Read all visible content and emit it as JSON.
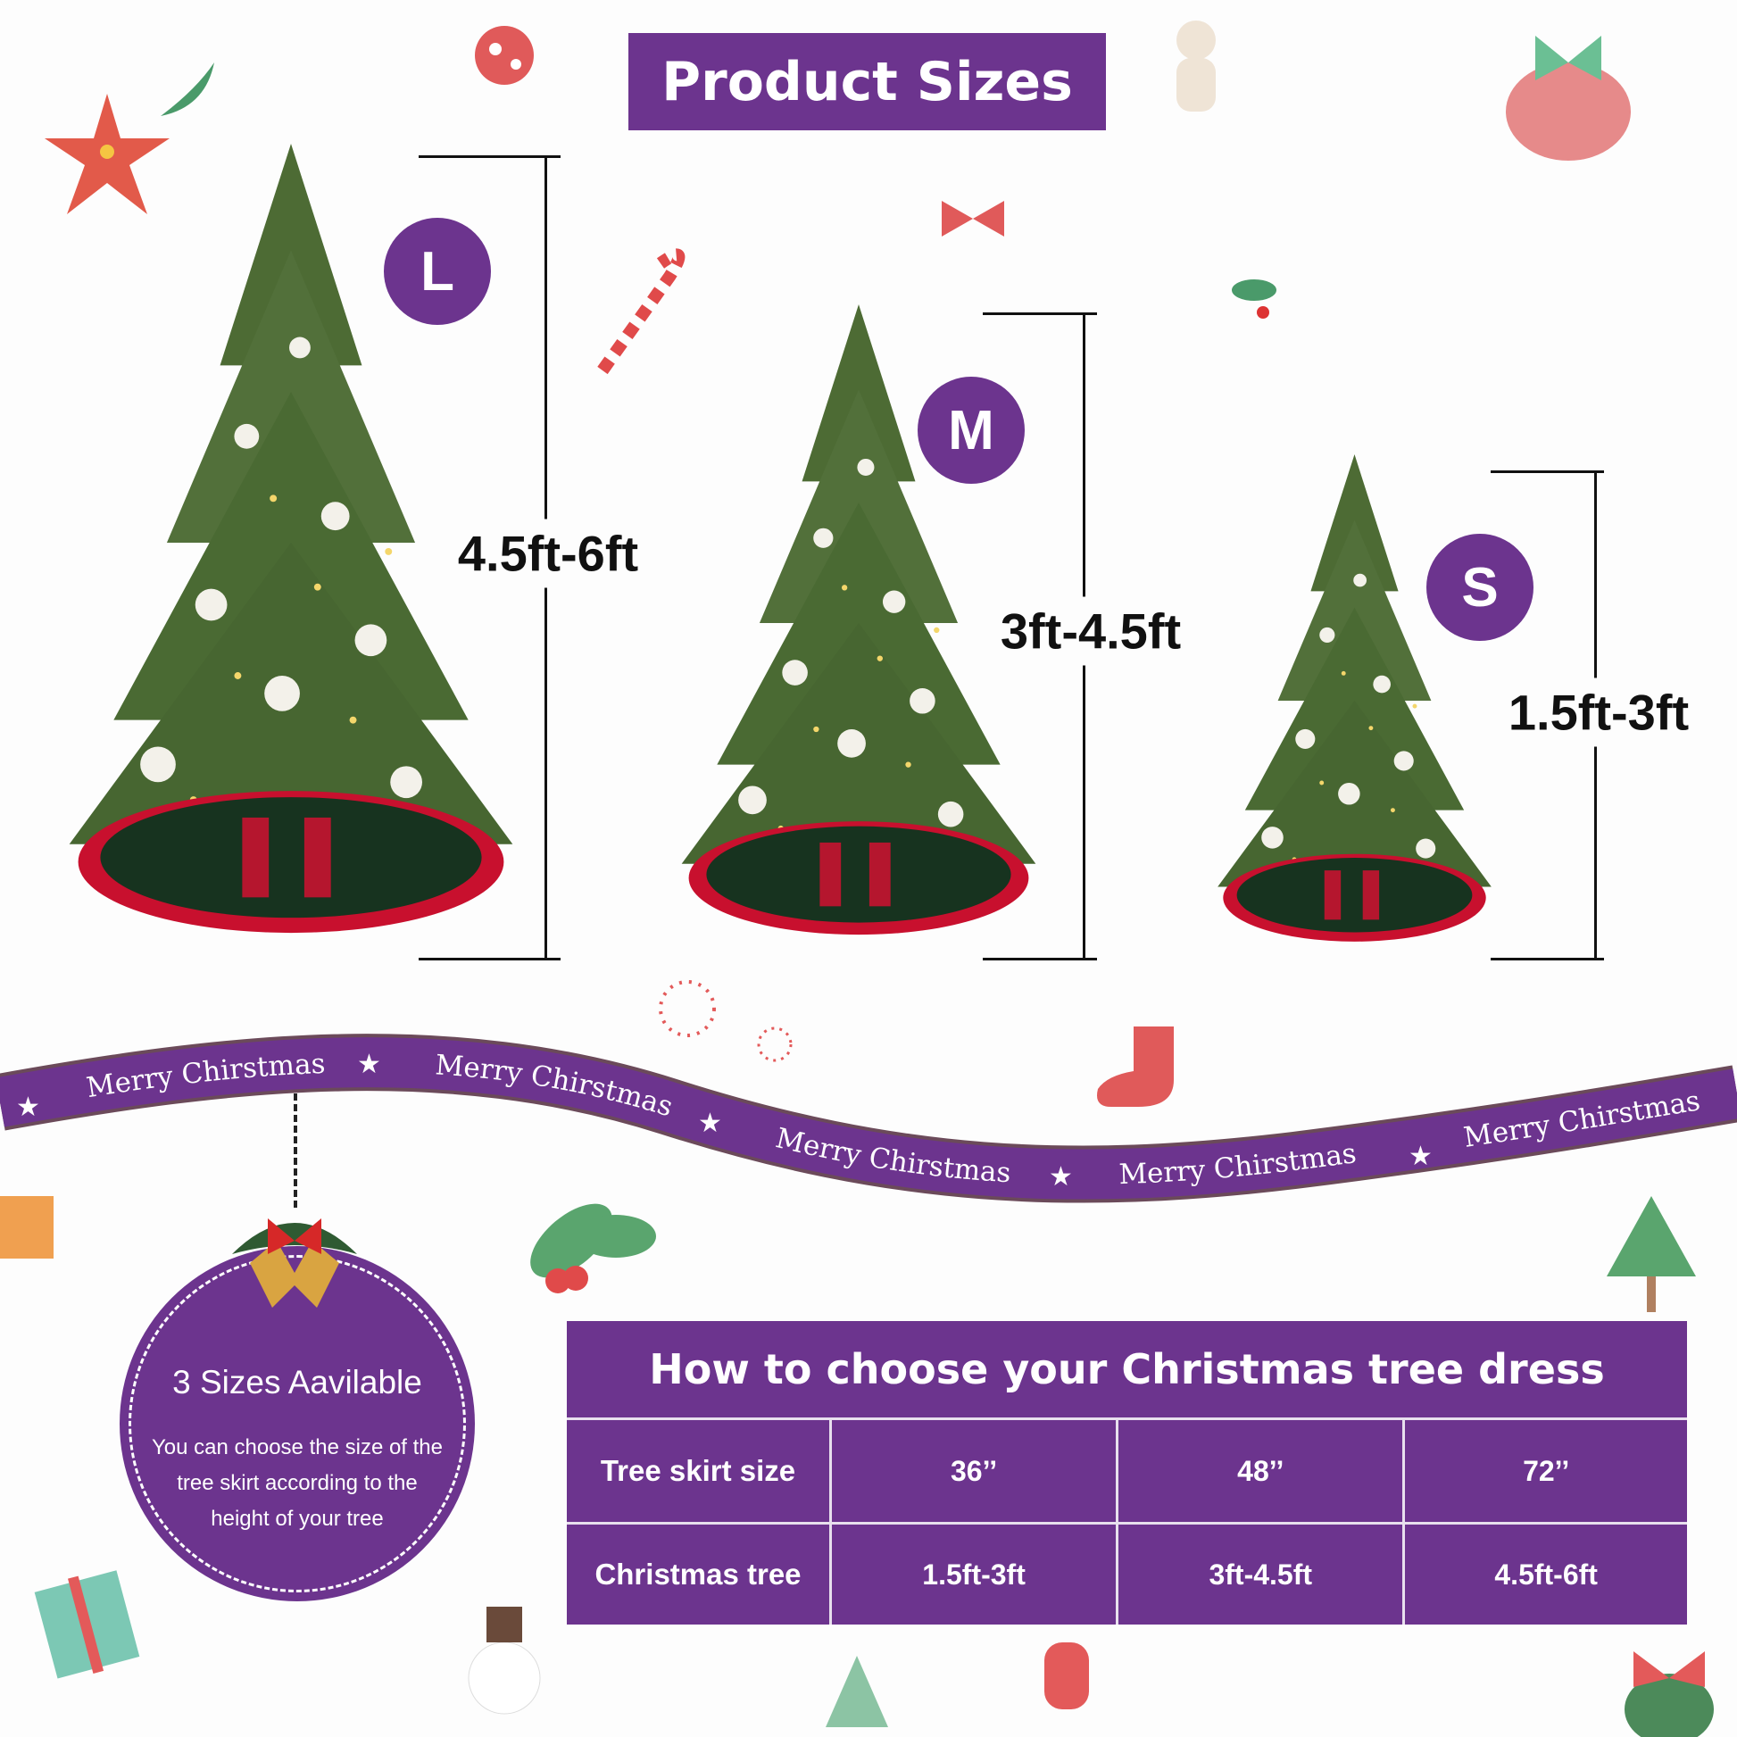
{
  "header": {
    "title": "Product Sizes"
  },
  "sizes": [
    {
      "badge": "L",
      "range": "4.5ft-6ft"
    },
    {
      "badge": "M",
      "range": "3ft-4.5ft"
    },
    {
      "badge": "S",
      "range": "1.5ft-3ft"
    }
  ],
  "ribbon": {
    "text": "Merry Chirstmas"
  },
  "info": {
    "heading": "3 Sizes Aavilable",
    "lines": [
      "You can choose the size of the",
      "tree skirt according to the",
      "height of your tree"
    ]
  },
  "table": {
    "title": "How to choose your Christmas tree dress",
    "rows": [
      {
        "label": "Tree skirt size",
        "values": [
          "36’’",
          "48’’",
          "72’’"
        ]
      },
      {
        "label": "Christmas tree",
        "values": [
          "1.5ft-3ft",
          "3ft-4.5ft",
          "4.5ft-6ft"
        ]
      }
    ]
  },
  "colors": {
    "accent": "#6c348e",
    "skirt_red": "#c8102e",
    "skirt_green": "#17331f"
  }
}
